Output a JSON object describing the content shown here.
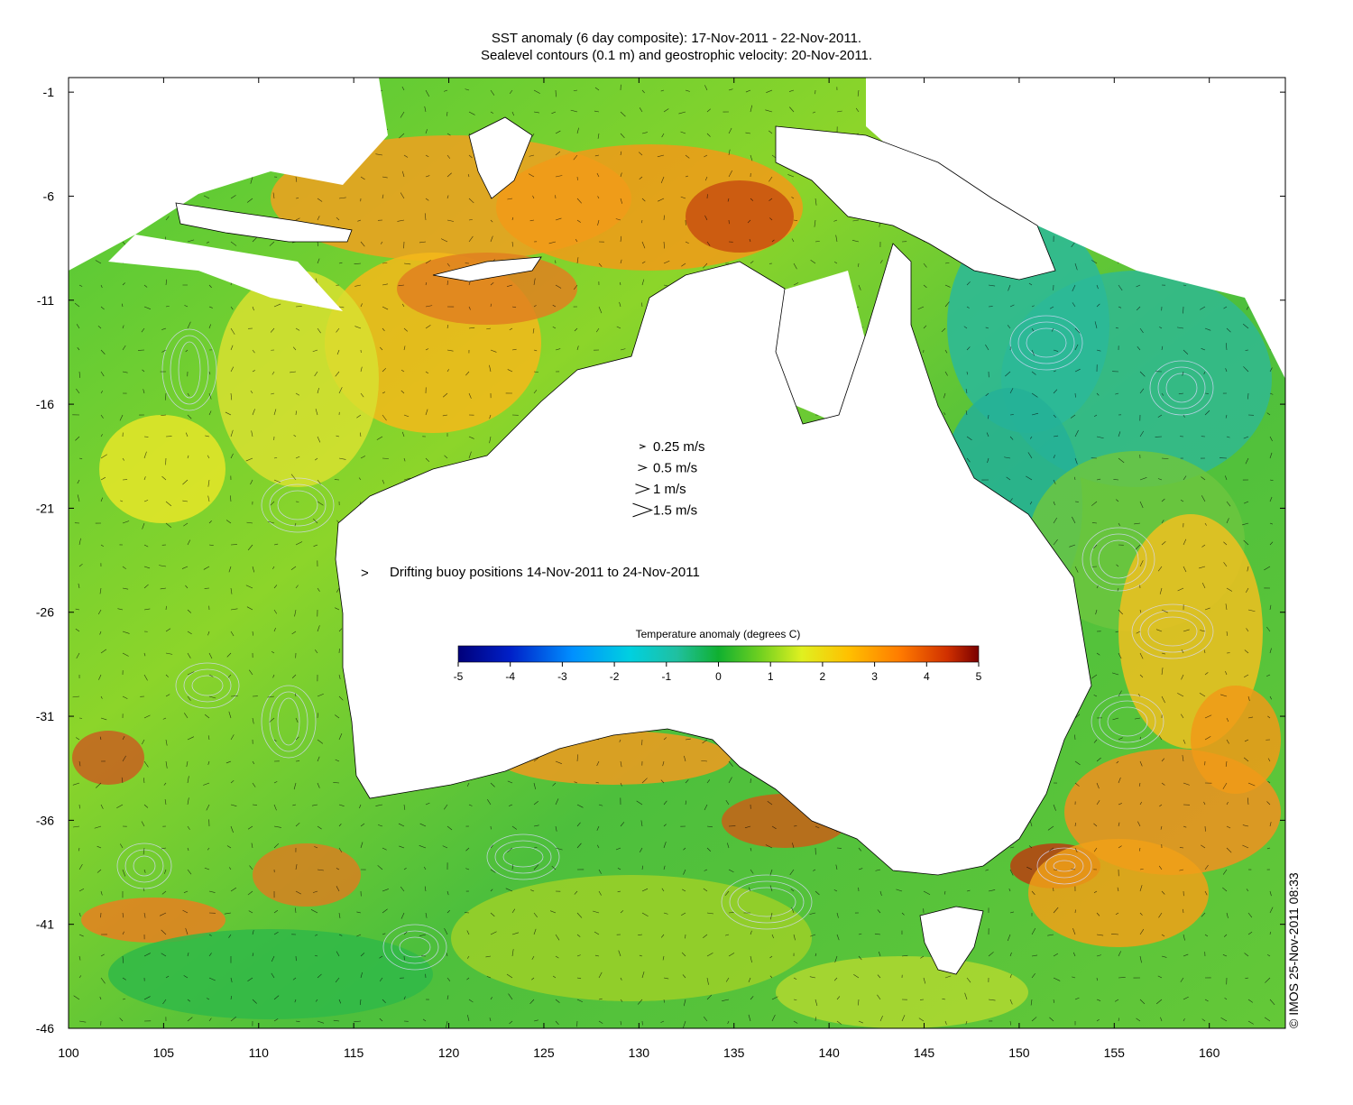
{
  "title_line1": "SST anomaly (6 day composite): 17-Nov-2011 - 22-Nov-2011.",
  "title_line2": "Sealevel contours (0.1 m) and geostrophic velocity: 20-Nov-2011.",
  "credit": "© IMOS 25-Nov-2011 08:33",
  "lon_ticks": [
    "100",
    "105",
    "110",
    "115",
    "120",
    "125",
    "130",
    "135",
    "140",
    "145",
    "150",
    "155",
    "160"
  ],
  "lat_ticks": [
    "-1",
    "-6",
    "-11",
    "-16",
    "-21",
    "-26",
    "-31",
    "-36",
    "-41",
    "-46"
  ],
  "velocity_legend": [
    {
      "label": "0.25 m/s",
      "speed": 0.25
    },
    {
      "label": "0.5 m/s",
      "speed": 0.5
    },
    {
      "label": "1 m/s",
      "speed": 1
    },
    {
      "label": "1.5 m/s",
      "speed": 1.5
    }
  ],
  "buoy_legend": "Drifting buoy positions 14-Nov-2011 to 24-Nov-2011",
  "buoy_color": "#e020e0",
  "colorbar": {
    "title": "Temperature anomaly (degrees C)",
    "ticks": [
      "-5",
      "-4",
      "-3",
      "-2",
      "-1",
      "0",
      "1",
      "2",
      "3",
      "4",
      "5"
    ],
    "range": [
      -5,
      5
    ]
  },
  "map": {
    "lon_range": [
      100,
      164
    ],
    "lat_range": [
      -46,
      -0.3
    ],
    "land_color": "#ffffff",
    "coast_color": "#000000"
  }
}
